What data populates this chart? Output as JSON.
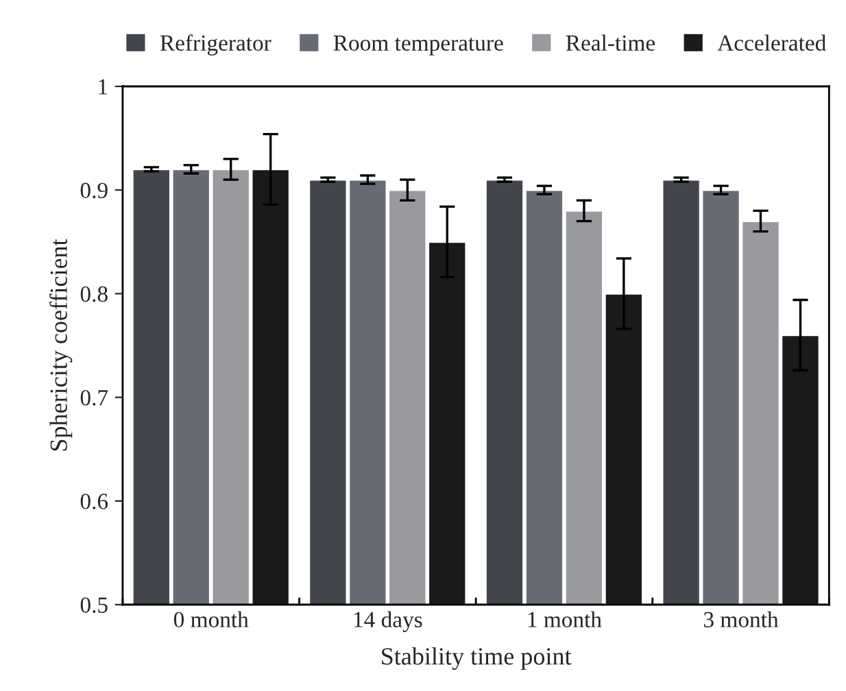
{
  "chart_data": {
    "type": "bar",
    "xlabel": "Stability time point",
    "ylabel": "Sphericity coefficient",
    "categories": [
      "0 month",
      "14 days",
      "1 month",
      "3 month"
    ],
    "series": [
      {
        "name": "Refrigerator",
        "color": "#42454c",
        "values": [
          0.92,
          0.91,
          0.91,
          0.91
        ],
        "errors": [
          0.002,
          0.002,
          0.002,
          0.002
        ]
      },
      {
        "name": "Room temperature",
        "color": "#676c74",
        "values": [
          0.92,
          0.91,
          0.9,
          0.9
        ],
        "errors": [
          0.004,
          0.004,
          0.004,
          0.004
        ]
      },
      {
        "name": "Real-time",
        "color": "#989a9e",
        "values": [
          0.92,
          0.9,
          0.88,
          0.87
        ],
        "errors": [
          0.01,
          0.01,
          0.01,
          0.01
        ]
      },
      {
        "name": "Accelerated",
        "color": "#1a1a1a",
        "values": [
          0.92,
          0.85,
          0.8,
          0.76
        ],
        "errors": [
          0.034,
          0.034,
          0.034,
          0.034
        ]
      }
    ],
    "ylim": [
      0.5,
      1
    ],
    "yticks": [
      0.5,
      0.6,
      0.7,
      0.8,
      0.9,
      {
        "value": 1,
        "label": "1"
      }
    ],
    "grid": false,
    "legend": "top"
  }
}
